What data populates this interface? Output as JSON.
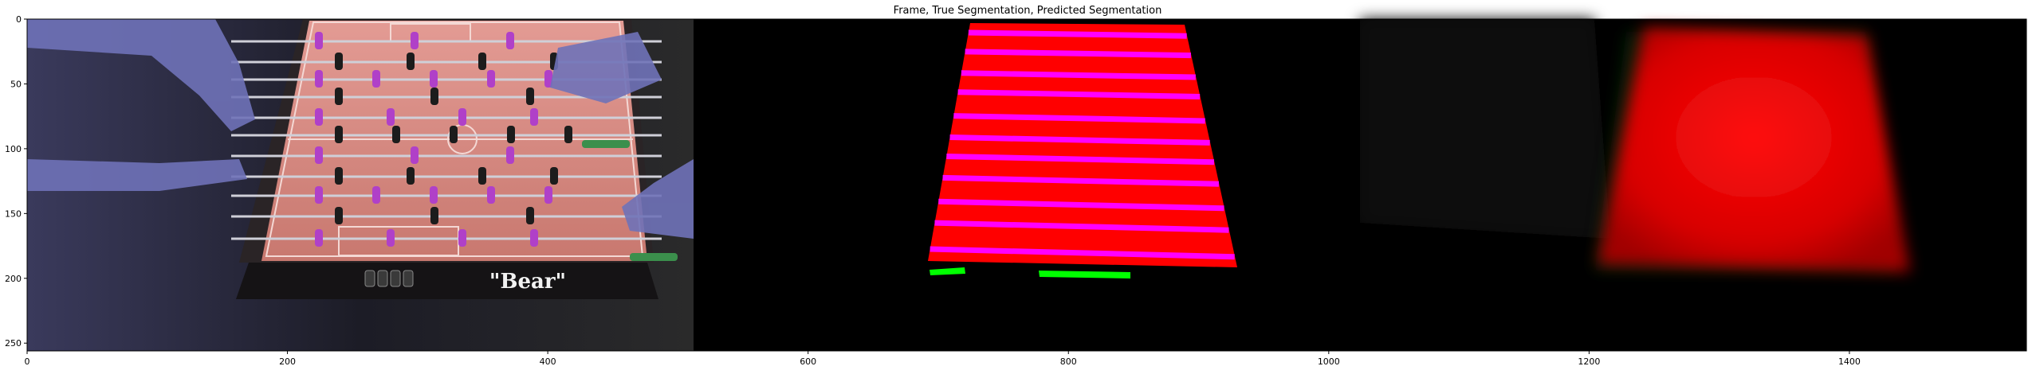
{
  "chart_data": {
    "type": "image",
    "title": "Frame, True Segmentation, Predicted Segmentation",
    "xlim": [
      0,
      1536
    ],
    "ylim": [
      256,
      0
    ],
    "x_ticks": [
      0,
      200,
      400,
      600,
      800,
      1000,
      1200,
      1400
    ],
    "y_ticks": [
      0,
      50,
      100,
      150,
      200,
      250
    ],
    "panels": [
      {
        "name": "Frame",
        "x_range": [
          0,
          512
        ],
        "content": "foosball table photo with players' hands; table logo text \"Bear\""
      },
      {
        "name": "True Segmentation",
        "x_range": [
          512,
          1024
        ],
        "content": "red trapezoid playing field with magenta rod stripes and two green handle marks"
      },
      {
        "name": "Predicted Segmentation",
        "x_range": [
          1024,
          1536
        ],
        "content": "blurred red trapezoid on dark background"
      }
    ],
    "frame_logo_text": "\"Bear\"",
    "colors": {
      "field": "#ff0000",
      "rod": "#ff00ff",
      "handle": "#00ff00",
      "background": "#000000",
      "predicted_field": "#e80000"
    },
    "grid": false,
    "legend": "none"
  }
}
